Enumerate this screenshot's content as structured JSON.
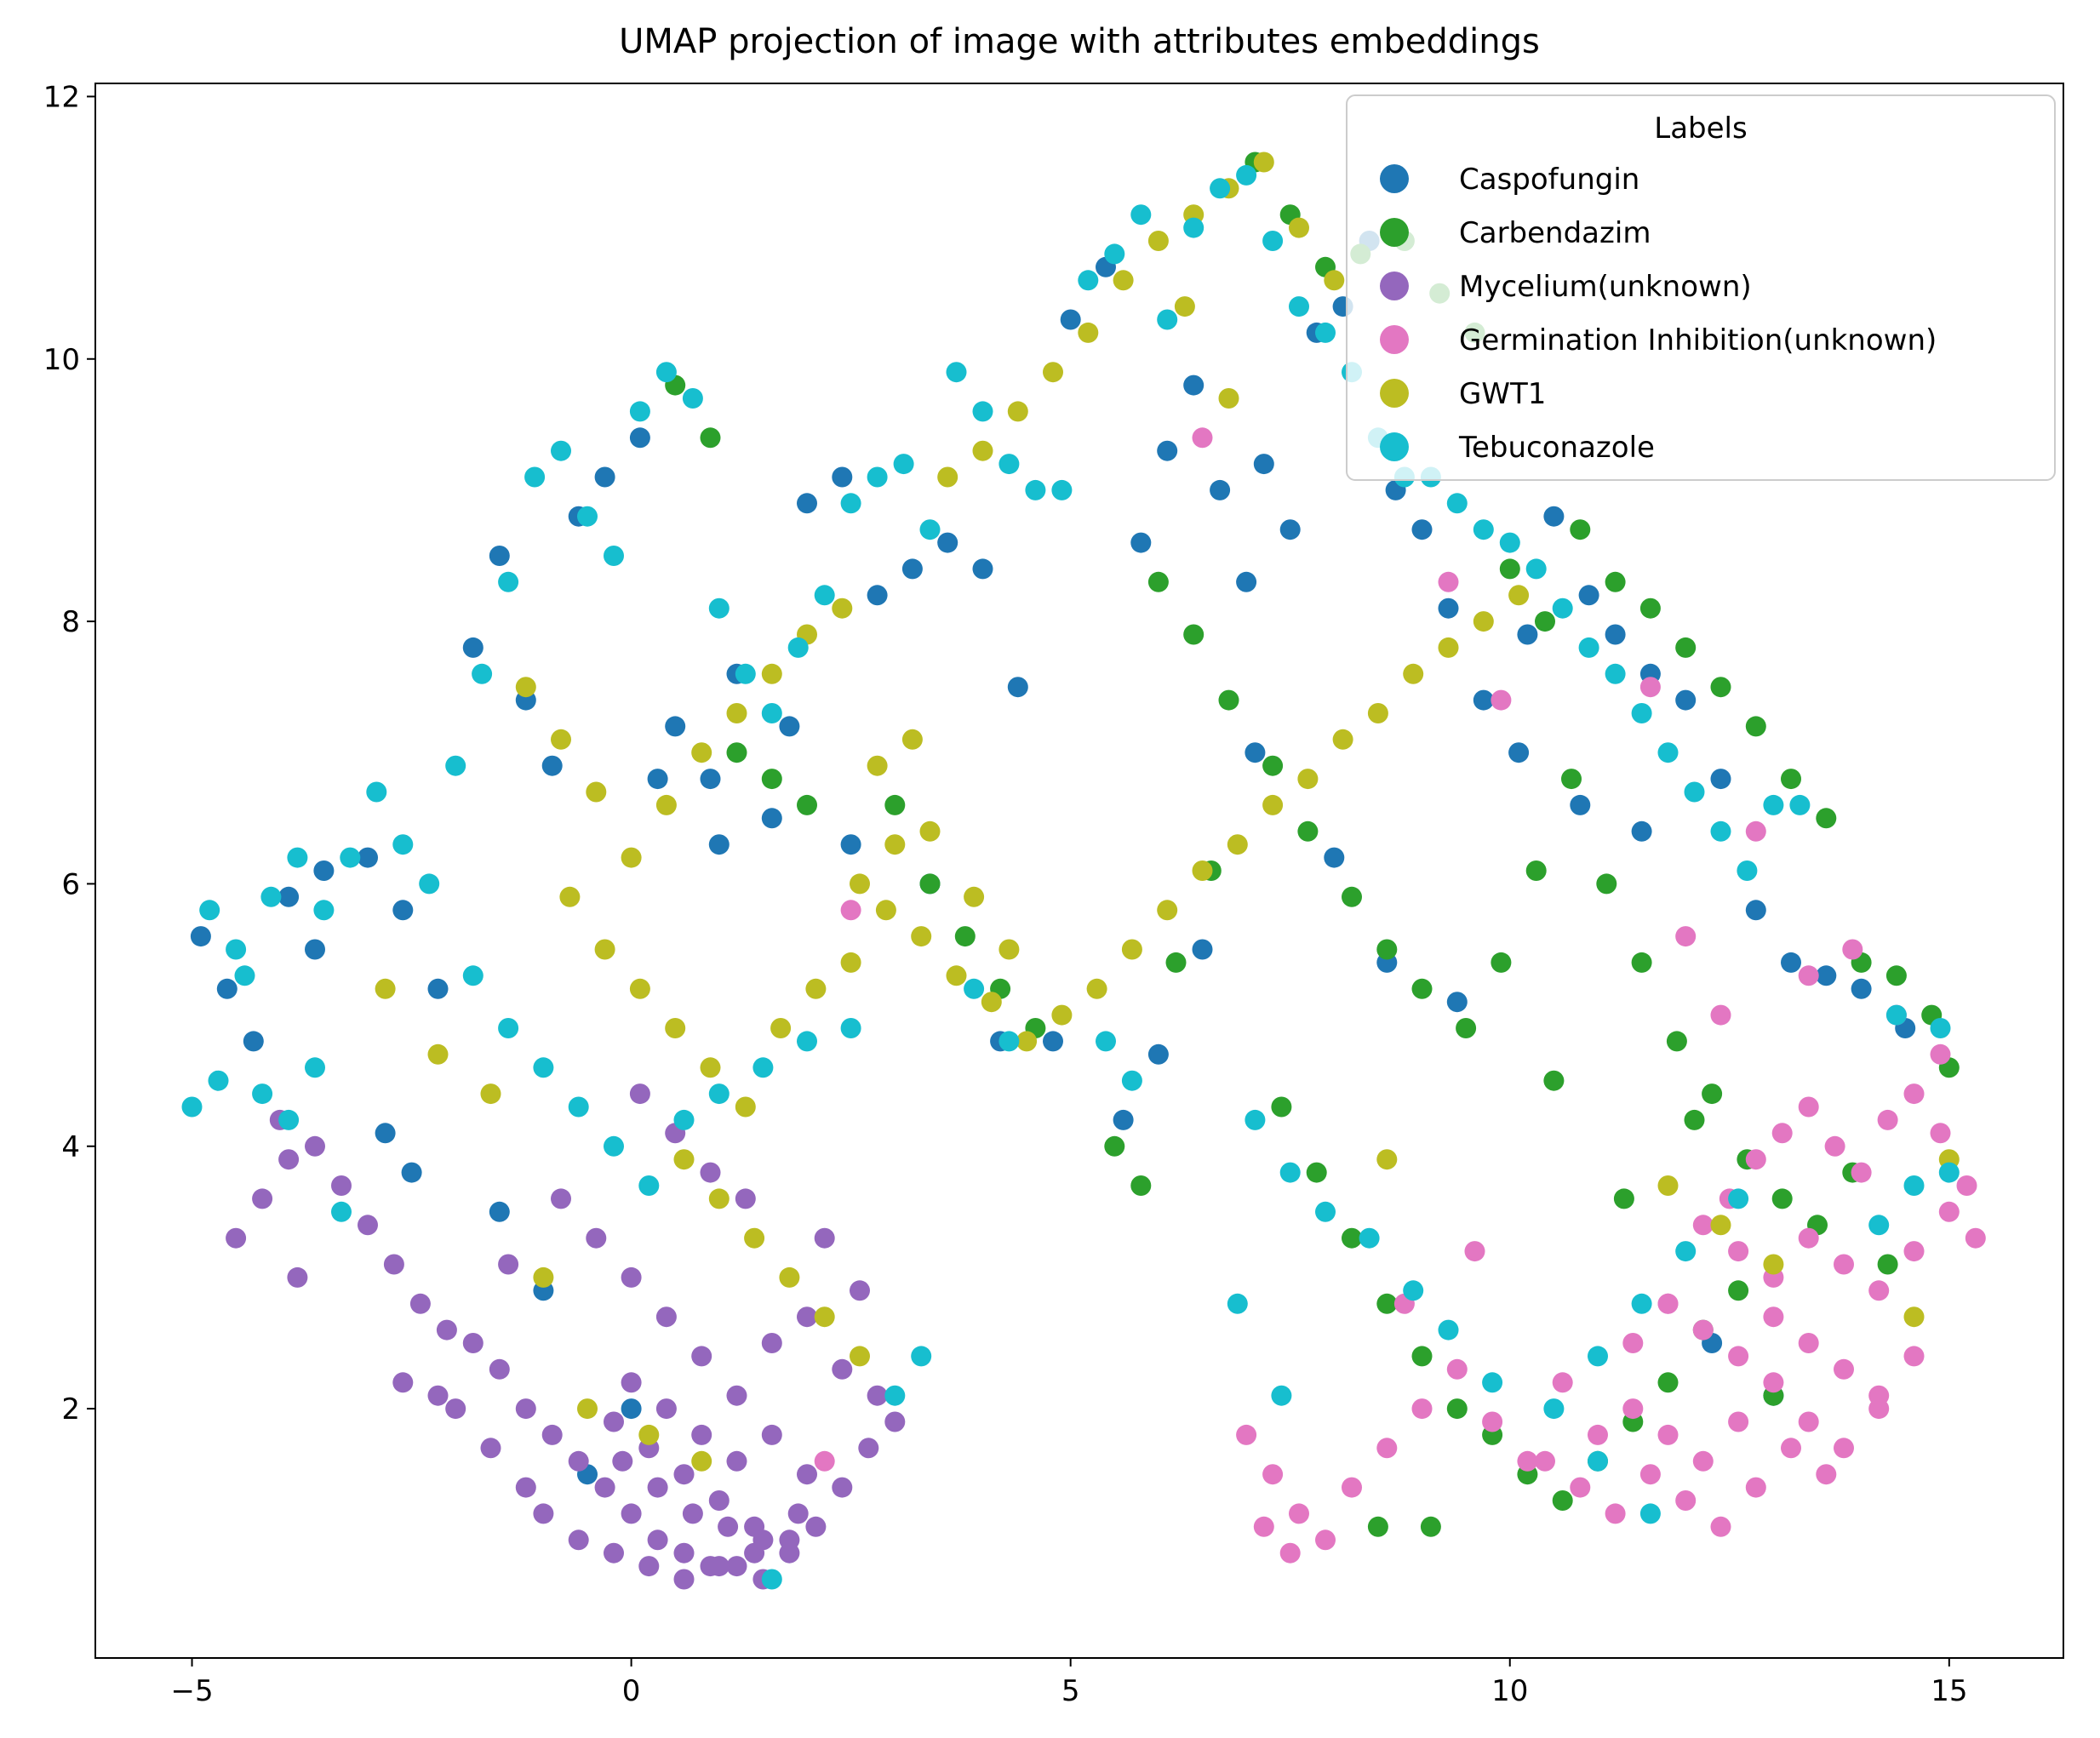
{
  "chart_data": {
    "type": "scatter",
    "title": "UMAP projection of image with attributes embeddings",
    "xlabel": "",
    "ylabel": "",
    "xlim": [
      -6.1,
      16.3
    ],
    "ylim": [
      0.1,
      12.1
    ],
    "xticks": [
      -5,
      0,
      5,
      10,
      15
    ],
    "yticks": [
      2,
      4,
      6,
      8,
      10,
      12
    ],
    "xtick_labels": [
      "−5",
      "0",
      "5",
      "10",
      "15"
    ],
    "ytick_labels": [
      "2",
      "4",
      "6",
      "8",
      "10",
      "12"
    ],
    "grid": false,
    "legend": {
      "title": "Labels",
      "placement": "top-right"
    },
    "series": [
      {
        "name": "Caspofungin",
        "color": "#1f77b4",
        "x": [
          -4.9,
          -4.6,
          -4.3,
          -3.9,
          -3.5,
          -3.0,
          -2.6,
          -2.2,
          -1.8,
          -1.5,
          -1.2,
          -0.9,
          -0.6,
          -0.3,
          0.1,
          0.5,
          0.9,
          1.2,
          1.6,
          2.0,
          2.4,
          2.8,
          3.2,
          3.6,
          4.0,
          4.4,
          5.0,
          5.4,
          5.8,
          6.1,
          6.4,
          6.7,
          7.0,
          7.2,
          7.5,
          7.8,
          8.1,
          8.4,
          8.7,
          9.0,
          9.3,
          9.7,
          10.1,
          10.5,
          10.9,
          11.2,
          11.6,
          12.0,
          12.4,
          12.8,
          13.2,
          13.6,
          14.0,
          14.5,
          7.1,
          6.5,
          6.0,
          5.6,
          8.0,
          8.6,
          9.4,
          10.2,
          10.8,
          11.5,
          12.3,
          13.0,
          -1.5,
          -1.0,
          -2.5,
          0.3,
          1.0,
          1.8,
          2.5,
          3.4,
          4.2,
          4.8,
          -3.6,
          -2.8,
          -0.5,
          0.0
        ],
        "y": [
          5.6,
          5.2,
          4.8,
          5.9,
          6.1,
          6.2,
          5.8,
          5.2,
          7.8,
          8.5,
          7.4,
          6.9,
          8.8,
          9.1,
          9.4,
          7.2,
          6.8,
          7.6,
          6.5,
          8.9,
          9.1,
          8.2,
          8.4,
          8.6,
          8.4,
          7.5,
          10.3,
          10.7,
          8.6,
          9.3,
          9.8,
          9.0,
          8.3,
          9.2,
          8.7,
          10.2,
          10.4,
          10.9,
          9.0,
          8.7,
          8.1,
          7.4,
          7.0,
          8.8,
          8.2,
          7.9,
          7.6,
          7.4,
          6.8,
          5.8,
          5.4,
          5.3,
          5.2,
          4.9,
          7.0,
          5.5,
          4.7,
          4.2,
          6.2,
          5.4,
          5.1,
          7.9,
          6.6,
          6.4,
          2.5,
          2.1,
          3.5,
          2.9,
          3.8,
          6.8,
          6.3,
          7.2,
          6.3,
          6.0,
          4.8,
          4.8,
          5.5,
          4.1,
          1.5,
          2.0
        ]
      },
      {
        "name": "Carbendazim",
        "color": "#2ca02c",
        "x": [
          7.1,
          7.5,
          7.9,
          8.3,
          8.8,
          9.2,
          9.6,
          10.0,
          10.4,
          10.8,
          11.2,
          11.6,
          12.0,
          12.4,
          12.8,
          13.2,
          13.6,
          14.0,
          14.4,
          14.8,
          15.0,
          6.0,
          6.4,
          6.8,
          7.3,
          7.7,
          8.2,
          8.6,
          9.0,
          9.5,
          9.9,
          10.3,
          10.7,
          11.1,
          11.5,
          11.9,
          12.3,
          12.7,
          13.1,
          13.5,
          13.9,
          14.3,
          7.4,
          7.8,
          8.2,
          8.6,
          9.0,
          9.4,
          9.8,
          10.2,
          10.6,
          11.0,
          11.4,
          11.8,
          12.2,
          12.6,
          13.0,
          5.5,
          5.8,
          6.2,
          6.6,
          3.0,
          3.4,
          3.8,
          4.2,
          4.6,
          1.2,
          1.6,
          2.0,
          0.5,
          0.9,
          10.5,
          11.3,
          12.1,
          9.1,
          8.5
        ],
        "y": [
          11.5,
          11.1,
          10.7,
          10.8,
          10.9,
          10.5,
          10.2,
          8.4,
          8.0,
          8.7,
          8.3,
          8.1,
          7.8,
          7.5,
          7.2,
          6.8,
          6.5,
          5.4,
          5.3,
          5.0,
          4.6,
          8.3,
          7.9,
          7.4,
          6.9,
          6.4,
          5.9,
          5.5,
          5.2,
          4.9,
          5.4,
          6.1,
          6.8,
          6.0,
          5.4,
          4.8,
          4.4,
          3.9,
          3.6,
          3.4,
          3.8,
          3.1,
          4.3,
          3.8,
          3.3,
          2.8,
          2.4,
          2.0,
          1.8,
          1.5,
          1.3,
          1.6,
          1.9,
          2.2,
          2.6,
          2.9,
          2.1,
          4.0,
          3.7,
          5.4,
          6.1,
          6.6,
          6.0,
          5.6,
          5.2,
          4.9,
          7.0,
          6.8,
          6.6,
          9.8,
          9.4,
          4.5,
          3.6,
          4.2,
          1.1,
          1.1
        ]
      },
      {
        "name": "Mycelium(unknown)",
        "color": "#9467bd",
        "x": [
          -4.5,
          -4.2,
          -3.9,
          -3.6,
          -3.3,
          -3.0,
          -2.7,
          -2.4,
          -2.1,
          -1.8,
          -1.5,
          -1.2,
          -0.9,
          -0.6,
          -0.3,
          0.0,
          0.3,
          0.6,
          0.9,
          1.2,
          1.5,
          1.8,
          2.1,
          2.4,
          2.7,
          3.0,
          -0.8,
          -0.4,
          0.0,
          0.4,
          0.8,
          1.2,
          1.6,
          2.0,
          -0.2,
          0.2,
          0.6,
          1.0,
          1.4,
          1.8,
          -1.0,
          -0.6,
          -0.2,
          0.2,
          0.6,
          1.0,
          1.4,
          -2.0,
          -1.6,
          -1.2,
          -2.6,
          -2.2,
          -3.8,
          -4.0,
          0.1,
          0.5,
          0.9,
          1.3,
          2.2,
          2.6,
          -0.1,
          0.3,
          0.7,
          1.1,
          1.5,
          1.9,
          0.0,
          0.4,
          0.8,
          1.2,
          1.6,
          2.0,
          2.4,
          2.8,
          -1.4
        ],
        "y": [
          3.3,
          3.6,
          3.9,
          4.0,
          3.7,
          3.4,
          3.1,
          2.8,
          2.6,
          2.5,
          2.3,
          2.0,
          1.8,
          1.6,
          1.4,
          1.2,
          1.0,
          0.9,
          0.8,
          0.8,
          0.7,
          0.9,
          1.1,
          1.4,
          1.7,
          1.9,
          3.6,
          3.3,
          3.0,
          2.7,
          2.4,
          2.1,
          1.8,
          1.5,
          1.9,
          1.7,
          1.5,
          1.3,
          1.1,
          1.0,
          1.2,
          1.0,
          0.9,
          0.8,
          0.7,
          0.8,
          0.9,
          2.0,
          1.7,
          1.4,
          2.2,
          2.1,
          3.0,
          4.2,
          4.4,
          4.1,
          3.8,
          3.6,
          3.3,
          2.9,
          1.6,
          1.4,
          1.2,
          1.1,
          1.0,
          1.2,
          2.2,
          2.0,
          1.8,
          1.6,
          2.5,
          2.7,
          2.3,
          2.1,
          3.1
        ]
      },
      {
        "name": "Germination Inhibition(unknown)",
        "color": "#e377c2",
        "x": [
          12.5,
          12.8,
          13.1,
          13.4,
          13.7,
          14.0,
          14.3,
          14.6,
          14.9,
          15.2,
          12.2,
          12.6,
          13.0,
          13.4,
          13.8,
          14.2,
          14.6,
          15.0,
          15.3,
          11.8,
          12.2,
          12.6,
          13.0,
          13.4,
          13.8,
          14.2,
          14.6,
          11.4,
          11.8,
          12.2,
          12.6,
          13.0,
          13.4,
          13.8,
          14.2,
          10.4,
          10.8,
          11.2,
          11.6,
          12.0,
          12.4,
          12.8,
          13.2,
          13.6,
          7.0,
          7.3,
          7.6,
          7.9,
          8.2,
          8.6,
          9.0,
          9.4,
          9.8,
          10.2,
          10.6,
          11.0,
          11.4,
          11.8,
          12.0,
          12.4,
          13.4,
          13.9,
          14.4,
          14.9,
          7.2,
          7.5,
          9.3,
          9.9,
          11.6,
          12.8,
          2.5,
          2.2,
          8.8,
          9.6,
          6.5
        ],
        "y": [
          3.6,
          3.9,
          4.1,
          4.3,
          4.0,
          3.8,
          4.2,
          4.4,
          4.1,
          3.7,
          3.4,
          3.2,
          3.0,
          3.3,
          3.1,
          2.9,
          3.2,
          3.5,
          3.3,
          2.8,
          2.6,
          2.4,
          2.7,
          2.5,
          2.3,
          2.1,
          2.4,
          2.0,
          1.8,
          1.6,
          1.9,
          2.2,
          1.9,
          1.7,
          2.0,
          1.6,
          1.4,
          1.2,
          1.5,
          1.3,
          1.1,
          1.4,
          1.7,
          1.5,
          1.8,
          1.5,
          1.2,
          1.0,
          1.4,
          1.7,
          2.0,
          2.3,
          1.9,
          1.6,
          2.2,
          1.8,
          2.5,
          2.8,
          5.6,
          5.0,
          5.3,
          5.5,
          5.0,
          4.7,
          1.1,
          0.9,
          8.3,
          7.4,
          7.5,
          6.4,
          5.8,
          1.6,
          2.8,
          3.2,
          9.4
        ],
        "note": ""
      },
      {
        "name": "GWT1",
        "color": "#bcbd22",
        "x": [
          -0.7,
          -0.3,
          0.1,
          0.5,
          0.9,
          1.3,
          1.7,
          2.1,
          2.5,
          2.9,
          3.3,
          3.7,
          4.1,
          4.5,
          4.9,
          5.3,
          5.7,
          6.1,
          6.5,
          6.9,
          7.3,
          7.7,
          8.1,
          8.5,
          8.9,
          9.3,
          9.7,
          10.1,
          -1.2,
          -0.8,
          -0.4,
          0.0,
          0.4,
          0.8,
          1.2,
          1.6,
          2.0,
          2.4,
          2.8,
          3.2,
          3.6,
          4.0,
          4.4,
          4.8,
          5.2,
          5.6,
          6.0,
          6.4,
          6.8,
          7.2,
          7.6,
          8.0,
          3.4,
          3.9,
          4.3,
          2.6,
          3.0,
          -2.8,
          -2.2,
          -1.6,
          -1.0,
          0.6,
          1.0,
          1.4,
          1.8,
          2.2,
          2.6,
          -0.5,
          0.2,
          0.8,
          6.3,
          6.8,
          8.6,
          11.8,
          12.4,
          13.0,
          14.6,
          15.0
        ],
        "y": [
          5.9,
          5.5,
          5.2,
          4.9,
          4.6,
          4.3,
          4.9,
          5.2,
          5.4,
          5.8,
          5.6,
          5.3,
          5.1,
          4.8,
          5.0,
          5.2,
          5.5,
          5.8,
          6.1,
          6.3,
          6.6,
          6.8,
          7.1,
          7.3,
          7.6,
          7.8,
          8.0,
          8.2,
          7.5,
          7.1,
          6.7,
          6.2,
          6.6,
          7.0,
          7.3,
          7.6,
          7.9,
          8.1,
          6.9,
          7.1,
          9.1,
          9.3,
          9.6,
          9.9,
          10.2,
          10.6,
          10.9,
          11.1,
          11.3,
          11.5,
          11.0,
          10.6,
          6.4,
          5.9,
          5.5,
          6.0,
          6.3,
          5.2,
          4.7,
          4.4,
          3.0,
          3.9,
          3.6,
          3.3,
          3.0,
          2.7,
          2.4,
          2.0,
          1.8,
          1.6,
          10.4,
          9.7,
          3.9,
          3.7,
          3.4,
          3.1,
          2.7,
          3.9
        ]
      },
      {
        "name": "Tebuconazole",
        "color": "#17becf",
        "x": [
          -5.0,
          -4.7,
          -4.4,
          -4.1,
          -3.8,
          -3.5,
          -3.2,
          -2.9,
          -2.6,
          -2.3,
          -2.0,
          -1.7,
          -1.4,
          -1.1,
          -0.8,
          -0.5,
          -0.2,
          0.1,
          0.4,
          0.7,
          1.0,
          1.3,
          1.6,
          1.9,
          2.2,
          2.5,
          2.8,
          3.1,
          3.4,
          3.7,
          4.0,
          4.3,
          4.6,
          4.9,
          5.2,
          5.5,
          5.8,
          6.1,
          6.4,
          6.7,
          7.0,
          7.3,
          7.6,
          7.9,
          8.2,
          8.5,
          8.8,
          9.1,
          9.4,
          9.7,
          10.0,
          10.3,
          10.6,
          10.9,
          11.2,
          11.5,
          11.8,
          12.1,
          12.4,
          12.7,
          13.0,
          13.3,
          14.4,
          14.9,
          15.0,
          -4.8,
          -4.5,
          -4.2,
          -3.9,
          -3.6,
          -3.3,
          -1.8,
          -1.4,
          -1.0,
          -0.6,
          -0.2,
          0.2,
          0.6,
          1.0,
          1.5,
          2.0,
          2.5,
          3.0,
          3.3,
          7.1,
          7.5,
          7.9,
          8.4,
          8.9,
          9.3,
          9.8,
          10.5,
          11.0,
          11.5,
          12.0,
          12.6,
          14.2,
          14.6,
          6.9,
          7.4,
          5.4,
          5.7,
          4.3,
          3.9,
          1.6,
          11.0,
          11.6
        ],
        "y": [
          4.3,
          4.5,
          5.3,
          5.9,
          6.2,
          5.8,
          6.2,
          6.7,
          6.3,
          6.0,
          6.9,
          7.6,
          8.3,
          9.1,
          9.3,
          8.8,
          8.5,
          9.6,
          9.9,
          9.7,
          8.1,
          7.6,
          7.3,
          7.8,
          8.2,
          8.9,
          9.1,
          9.2,
          8.7,
          9.9,
          9.6,
          9.2,
          9.0,
          9.0,
          10.6,
          10.8,
          11.1,
          10.3,
          11.0,
          11.3,
          11.4,
          10.9,
          10.4,
          10.2,
          9.9,
          9.4,
          9.1,
          9.1,
          8.9,
          8.7,
          8.6,
          8.4,
          8.1,
          7.8,
          7.6,
          7.3,
          7.0,
          6.7,
          6.4,
          6.1,
          6.6,
          6.6,
          5.0,
          4.9,
          3.8,
          5.8,
          5.5,
          4.4,
          4.2,
          4.6,
          3.5,
          5.3,
          4.9,
          4.6,
          4.3,
          4.0,
          3.7,
          4.2,
          4.4,
          4.6,
          4.8,
          4.9,
          2.1,
          2.4,
          4.2,
          3.8,
          3.5,
          3.3,
          2.9,
          2.6,
          2.2,
          2.0,
          2.4,
          2.8,
          3.2,
          3.6,
          3.4,
          3.7,
          2.8,
          2.1,
          4.8,
          4.5,
          4.8,
          5.2,
          0.7,
          1.6,
          1.2
        ]
      }
    ]
  }
}
